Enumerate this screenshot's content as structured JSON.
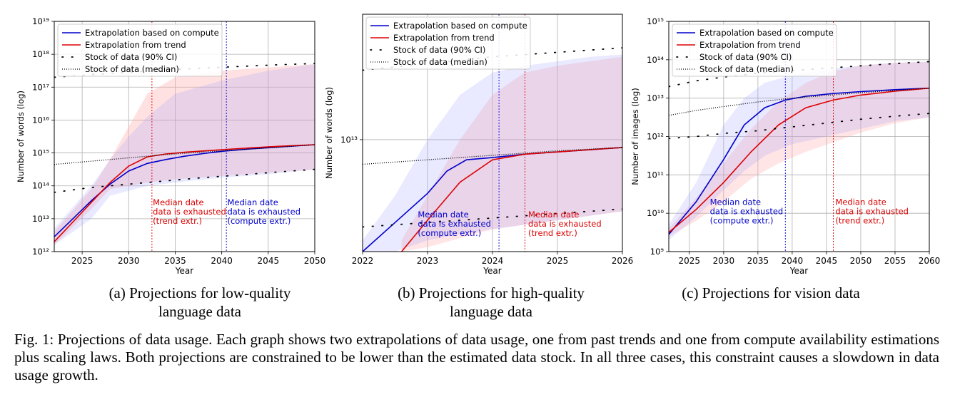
{
  "chart_data": [
    {
      "type": "line",
      "id": "a",
      "xlabel": "Year",
      "ylabel": "Number of words (log)",
      "xlim": [
        2022,
        2050
      ],
      "ylim_log10": [
        12,
        19
      ],
      "xticks": [
        2025,
        2030,
        2035,
        2040,
        2045,
        2050
      ],
      "xtick_labels": [
        "2025",
        "2030",
        "2035",
        "2040",
        "2045",
        "2050"
      ],
      "yticks_log10": [
        12,
        13,
        14,
        15,
        16,
        17,
        18,
        19
      ],
      "ytick_labels": [
        "10¹²",
        "10¹³",
        "10¹⁴",
        "10¹⁵",
        "10¹⁶",
        "10¹⁷",
        "10¹⁸",
        "10¹⁹"
      ],
      "grid": true,
      "legend_position": "top-left",
      "legend": [
        "Extrapolation based on compute",
        "Extrapolation from trend",
        "Stock of data (90% CI)",
        "Stock of data (median)"
      ],
      "series": [
        {
          "name": "Extrapolation based on compute",
          "color": "#0000cc",
          "style": "solid",
          "x": [
            2022,
            2024,
            2026,
            2028,
            2030,
            2032,
            2034,
            2036,
            2038,
            2040,
            2043,
            2046,
            2050
          ],
          "y_log10": [
            12.45,
            13.0,
            13.55,
            14.05,
            14.45,
            14.68,
            14.8,
            14.9,
            14.98,
            15.05,
            15.12,
            15.18,
            15.25
          ]
        },
        {
          "name": "Extrapolation from trend",
          "color": "#dd0000",
          "style": "solid",
          "x": [
            2022,
            2024,
            2026,
            2028,
            2030,
            2032,
            2034,
            2036,
            2038,
            2040,
            2043,
            2046,
            2050
          ],
          "y_log10": [
            12.3,
            12.9,
            13.5,
            14.1,
            14.6,
            14.88,
            14.97,
            15.02,
            15.06,
            15.1,
            15.15,
            15.2,
            15.25
          ]
        },
        {
          "name": "Stock of data (median)",
          "color": "#000000",
          "style": "dotted",
          "x": [
            2022,
            2026,
            2030,
            2034,
            2038,
            2042,
            2046,
            2050
          ],
          "y_log10": [
            14.65,
            14.75,
            14.85,
            14.95,
            15.03,
            15.1,
            15.17,
            15.25
          ]
        },
        {
          "name": "Stock of data (90% CI) upper",
          "color": "#000000",
          "style": "sparse-dotted",
          "x": [
            2022,
            2026,
            2030,
            2034,
            2038,
            2042,
            2046,
            2050
          ],
          "y_log10": [
            17.3,
            17.38,
            17.45,
            17.52,
            17.58,
            17.63,
            17.68,
            17.72
          ]
        },
        {
          "name": "Stock of data (90% CI) lower",
          "color": "#000000",
          "style": "sparse-dotted",
          "x": [
            2022,
            2026,
            2030,
            2034,
            2038,
            2042,
            2046,
            2050
          ],
          "y_log10": [
            13.8,
            13.95,
            14.05,
            14.15,
            14.25,
            14.33,
            14.42,
            14.5
          ]
        }
      ],
      "bands": [
        {
          "color": "#ffaaaa",
          "opacity": 0.35,
          "x": [
            2022,
            2026,
            2028,
            2030,
            2032,
            2035,
            2040,
            2045,
            2050
          ],
          "upper_log10": [
            12.6,
            13.9,
            14.8,
            15.8,
            16.8,
            17.3,
            17.5,
            17.6,
            17.7
          ],
          "lower_log10": [
            12.2,
            13.3,
            13.9,
            14.0,
            14.1,
            14.2,
            14.3,
            14.4,
            14.5
          ]
        },
        {
          "color": "#9999ff",
          "opacity": 0.22,
          "x": [
            2022,
            2026,
            2028,
            2030,
            2032,
            2035,
            2040,
            2045,
            2050
          ],
          "upper_log10": [
            12.7,
            14.0,
            14.8,
            15.5,
            16.1,
            16.8,
            17.2,
            17.5,
            17.7
          ],
          "lower_log10": [
            12.2,
            13.0,
            13.7,
            13.85,
            14.0,
            14.1,
            14.25,
            14.35,
            14.5
          ]
        }
      ],
      "vlines": [
        {
          "x": 2032.5,
          "color": "#dd0000"
        },
        {
          "x": 2040.5,
          "color": "#0000cc"
        }
      ],
      "annotations": [
        {
          "lines": [
            "Median date",
            "data is exhausted",
            "(trend extr.)"
          ],
          "color": "#dd0000",
          "x": 2032.6,
          "y_log10": 12.85
        },
        {
          "lines": [
            "Median date",
            "data is exhausted",
            "(compute extr.)"
          ],
          "color": "#0000cc",
          "x": 2040.6,
          "y_log10": 12.85
        }
      ],
      "caption_lines": [
        "(a) Projections for low-quality",
        "language data"
      ]
    },
    {
      "type": "line",
      "id": "b",
      "xlabel": "Year",
      "ylabel": "Number of words (log)",
      "xlim": [
        2022,
        2026
      ],
      "ylim_log10": [
        12.5,
        13.56
      ],
      "xticks": [
        2022,
        2023,
        2024,
        2025,
        2026
      ],
      "xtick_labels": [
        "2022",
        "2023",
        "2024",
        "2025",
        "2026"
      ],
      "yticks_log10": [
        13
      ],
      "ytick_labels": [
        "10¹³"
      ],
      "grid": true,
      "legend_position": "top-left",
      "legend": [
        "Extrapolation based on compute",
        "Extrapolation from trend",
        "Stock of data (90% CI)",
        "Stock of data (median)"
      ],
      "series": [
        {
          "name": "Extrapolation based on compute",
          "color": "#0000cc",
          "style": "solid",
          "x": [
            2022,
            2022.5,
            2023,
            2023.3,
            2023.6,
            2024,
            2024.5,
            2025,
            2025.5,
            2026
          ],
          "y_log10": [
            12.5,
            12.63,
            12.76,
            12.86,
            12.91,
            12.92,
            12.935,
            12.945,
            12.955,
            12.965
          ]
        },
        {
          "name": "Extrapolation from trend",
          "color": "#dd0000",
          "style": "solid",
          "x": [
            2022.6,
            2023,
            2023.5,
            2024,
            2024.5,
            2025,
            2025.5,
            2026
          ],
          "y_log10": [
            12.5,
            12.64,
            12.81,
            12.91,
            12.935,
            12.945,
            12.955,
            12.965
          ]
        },
        {
          "name": "Stock of data (median)",
          "color": "#000000",
          "style": "dotted",
          "x": [
            2022,
            2023,
            2024,
            2025,
            2026
          ],
          "y_log10": [
            12.89,
            12.91,
            12.93,
            12.95,
            12.965
          ]
        },
        {
          "name": "Stock of data (90% CI) upper",
          "color": "#000000",
          "style": "sparse-dotted",
          "x": [
            2022,
            2023,
            2024,
            2025,
            2026
          ],
          "y_log10": [
            13.31,
            13.34,
            13.37,
            13.39,
            13.41
          ]
        },
        {
          "name": "Stock of data (90% CI) lower",
          "color": "#000000",
          "style": "sparse-dotted",
          "x": [
            2022,
            2023,
            2024,
            2025,
            2026
          ],
          "y_log10": [
            12.61,
            12.63,
            12.65,
            12.67,
            12.69
          ]
        }
      ],
      "bands": [
        {
          "color": "#ffaaaa",
          "opacity": 0.3,
          "x": [
            2022.6,
            2023,
            2023.5,
            2024,
            2024.5,
            2025,
            2025.5,
            2026
          ],
          "upper_log10": [
            12.55,
            12.75,
            13.0,
            13.2,
            13.3,
            13.33,
            13.35,
            13.37
          ],
          "lower_log10": [
            12.5,
            12.52,
            12.56,
            12.6,
            12.62,
            12.64,
            12.66,
            12.68
          ]
        },
        {
          "color": "#9999ff",
          "opacity": 0.22,
          "x": [
            2022,
            2022.5,
            2023,
            2023.5,
            2024,
            2024.5,
            2025,
            2025.5,
            2026
          ],
          "upper_log10": [
            12.55,
            12.75,
            13.0,
            13.2,
            13.3,
            13.33,
            13.35,
            13.37,
            13.38
          ],
          "lower_log10": [
            12.5,
            12.5,
            12.55,
            12.58,
            12.6,
            12.62,
            12.64,
            12.66,
            12.68
          ]
        }
      ],
      "vlines": [
        {
          "x": 2024.1,
          "color": "#0000cc"
        },
        {
          "x": 2024.5,
          "color": "#dd0000"
        }
      ],
      "annotations": [
        {
          "lines": [
            "Median date",
            "data is exhausted",
            "(compute extr.)"
          ],
          "color": "#0000cc",
          "x": 2022.85,
          "y_log10": 12.57
        },
        {
          "lines": [
            "Median date",
            "data is exhausted",
            "(trend extr.)"
          ],
          "color": "#dd0000",
          "x": 2024.55,
          "y_log10": 12.57
        }
      ],
      "caption_lines": [
        "(b) Projections for high-quality",
        "language data"
      ]
    },
    {
      "type": "line",
      "id": "c",
      "xlabel": "Year",
      "ylabel": "Number of images (log)",
      "xlim": [
        2022,
        2060
      ],
      "ylim_log10": [
        9,
        15
      ],
      "xticks": [
        2025,
        2030,
        2035,
        2040,
        2045,
        2050,
        2055,
        2060
      ],
      "xtick_labels": [
        "2025",
        "2030",
        "2035",
        "2040",
        "2045",
        "2050",
        "2055",
        "2060"
      ],
      "yticks_log10": [
        9,
        10,
        11,
        12,
        13,
        14,
        15
      ],
      "ytick_labels": [
        "10⁹",
        "10¹⁰",
        "10¹¹",
        "10¹²",
        "10¹³",
        "10¹⁴",
        "10¹⁵"
      ],
      "grid": true,
      "legend_position": "top-left",
      "legend": [
        "Extrapolation based on compute",
        "Extrapolation from trend",
        "Stock of data (90% CI)",
        "Stock of data (median)"
      ],
      "series": [
        {
          "name": "Extrapolation based on compute",
          "color": "#0000cc",
          "style": "solid",
          "x": [
            2022,
            2026,
            2030,
            2033,
            2036,
            2039,
            2042,
            2046,
            2050,
            2055,
            2060
          ],
          "y_log10": [
            9.45,
            10.3,
            11.4,
            12.3,
            12.75,
            12.95,
            13.05,
            13.12,
            13.17,
            13.22,
            13.26
          ]
        },
        {
          "name": "Extrapolation from trend",
          "color": "#dd0000",
          "style": "solid",
          "x": [
            2022,
            2026,
            2030,
            2034,
            2038,
            2042,
            2046,
            2050,
            2055,
            2060
          ],
          "y_log10": [
            9.5,
            10.1,
            10.8,
            11.6,
            12.3,
            12.75,
            12.95,
            13.08,
            13.18,
            13.26
          ]
        },
        {
          "name": "Stock of data (median)",
          "color": "#000000",
          "style": "dotted",
          "x": [
            2022,
            2026,
            2030,
            2035,
            2040,
            2045,
            2050,
            2055,
            2060
          ],
          "y_log10": [
            12.55,
            12.68,
            12.78,
            12.9,
            13.0,
            13.07,
            13.14,
            13.2,
            13.26
          ]
        },
        {
          "name": "Stock of data (90% CI) upper",
          "color": "#000000",
          "style": "sparse-dotted",
          "x": [
            2022,
            2026,
            2030,
            2035,
            2040,
            2045,
            2050,
            2055,
            2060
          ],
          "y_log10": [
            13.3,
            13.45,
            13.55,
            13.65,
            13.72,
            13.78,
            13.84,
            13.9,
            13.95
          ]
        },
        {
          "name": "Stock of data (90% CI) lower",
          "color": "#000000",
          "style": "sparse-dotted",
          "x": [
            2022,
            2026,
            2030,
            2035,
            2040,
            2045,
            2050,
            2055,
            2060
          ],
          "y_log10": [
            11.95,
            12.0,
            12.08,
            12.15,
            12.25,
            12.35,
            12.45,
            12.53,
            12.6
          ]
        }
      ],
      "bands": [
        {
          "color": "#ffaaaa",
          "opacity": 0.3,
          "x": [
            2022,
            2026,
            2030,
            2034,
            2038,
            2042,
            2046,
            2050,
            2055,
            2060
          ],
          "upper_log10": [
            9.6,
            10.4,
            11.3,
            12.2,
            12.9,
            13.4,
            13.7,
            13.85,
            13.92,
            13.95
          ],
          "lower_log10": [
            9.4,
            9.8,
            10.3,
            10.9,
            11.3,
            11.6,
            11.85,
            12.1,
            12.35,
            12.5
          ]
        },
        {
          "color": "#9999ff",
          "opacity": 0.22,
          "x": [
            2022,
            2026,
            2030,
            2033,
            2036,
            2040,
            2045,
            2050,
            2055,
            2060
          ],
          "upper_log10": [
            9.7,
            10.8,
            12.3,
            13.0,
            13.4,
            13.6,
            13.75,
            13.85,
            13.92,
            13.95
          ],
          "lower_log10": [
            9.3,
            9.9,
            10.6,
            11.1,
            11.5,
            11.8,
            12.0,
            12.2,
            12.4,
            12.5
          ]
        }
      ],
      "vlines": [
        {
          "x": 2039,
          "color": "#0000cc"
        },
        {
          "x": 2046,
          "color": "#dd0000"
        }
      ],
      "annotations": [
        {
          "lines": [
            "Median date",
            "data is exhausted",
            "(compute extr.)"
          ],
          "color": "#0000cc",
          "x": 2028,
          "y_log10": 9.73
        },
        {
          "lines": [
            "Median date",
            "data is exhausted",
            "(trend extr.)"
          ],
          "color": "#dd0000",
          "x": 2046.3,
          "y_log10": 9.73
        }
      ],
      "caption_lines": [
        "(c) Projections for vision data"
      ]
    }
  ],
  "figure_caption": "Fig. 1: Projections of data usage. Each graph shows two extrapolations of data usage, one from past trends and one from compute availability estimations plus scaling laws. Both projections are constrained to be lower than the estimated data stock. In all three cases, this constraint causes a slowdown in data usage growth."
}
